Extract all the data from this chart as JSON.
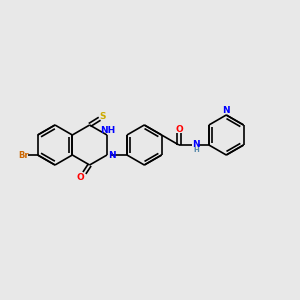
{
  "bg_color": "#e8e8e8",
  "bond_color": "#000000",
  "bond_width": 1.2,
  "atom_colors": {
    "N": "#0000ff",
    "O": "#ff0000",
    "S": "#ccaa00",
    "Br": "#cc6600",
    "H_gray": "#5588aa",
    "C": "#000000"
  },
  "font_size": 6.5,
  "fig_width": 3.0,
  "fig_height": 3.0,
  "dpi": 100,
  "xlim": [
    0,
    12
  ],
  "ylim": [
    0,
    10
  ]
}
